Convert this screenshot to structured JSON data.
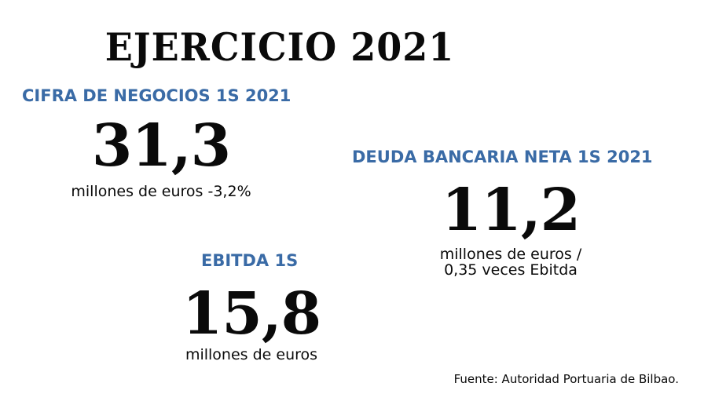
{
  "title": "EJERCICIO 2021",
  "blocks": {
    "cifra": {
      "label": "CIFRA DE NEGOCIOS 1S 2021",
      "value": "31,3",
      "unit": "millones de euros -3,2%"
    },
    "deuda": {
      "label": "DEUDA BANCARIA NETA 1S 2021",
      "value": "11,2",
      "unit_line1": "millones de euros /",
      "unit_line2": "0,35 veces Ebitda"
    },
    "ebitda": {
      "label": "EBITDA 1S",
      "value": "15,8",
      "unit": "millones de euros"
    }
  },
  "source": "Fuente: Autoridad Portuaria de Bilbao."
}
